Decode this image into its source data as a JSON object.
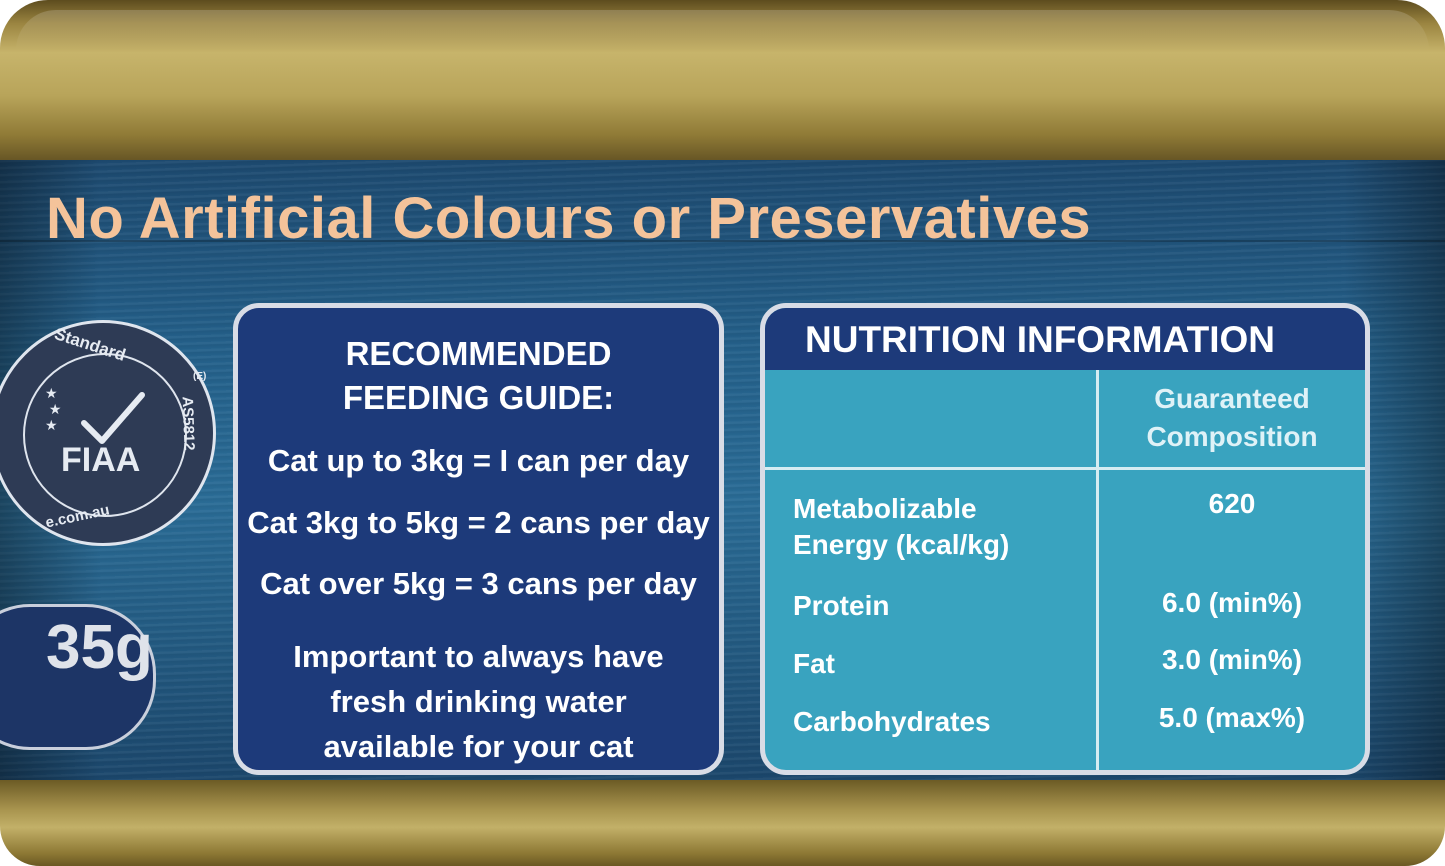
{
  "headline": "No Artificial Colours or Preservatives",
  "seal": {
    "top_text": "Standard",
    "right_text": "AS5812",
    "bottom_text": "e.com.au",
    "center_text": "FIAA",
    "reg_mark": "(E)"
  },
  "weight_text": "35g",
  "feeding_guide": {
    "title_line1": "RECOMMENDED",
    "title_line2": "FEEDING GUIDE:",
    "lines": [
      "Cat up to 3kg = I can per day",
      "Cat 3kg to 5kg = 2 cans per day",
      "Cat over 5kg = 3 cans per day"
    ],
    "note_line1": "Important to always have",
    "note_line2": "fresh drinking water",
    "note_line3": "available for your cat"
  },
  "nutrition": {
    "title": "NUTRITION INFORMATION",
    "column_header_line1": "Guaranteed",
    "column_header_line2": "Composition",
    "rows": [
      {
        "label_line1": "Metabolizable",
        "label_line2": "Energy (kcal/kg)",
        "value": "620"
      },
      {
        "label": "Protein",
        "value": "6.0 (min%)"
      },
      {
        "label": "Fat",
        "value": "3.0 (min%)"
      },
      {
        "label": "Carbohydrates",
        "value": "5.0 (max%)"
      }
    ]
  },
  "colors": {
    "headline": "#f4c39a",
    "label_blue": "#24608a",
    "panel_navy": "#1d3a7a",
    "panel_teal": "#39a3bf",
    "rim_gold": "#b8a45a"
  }
}
